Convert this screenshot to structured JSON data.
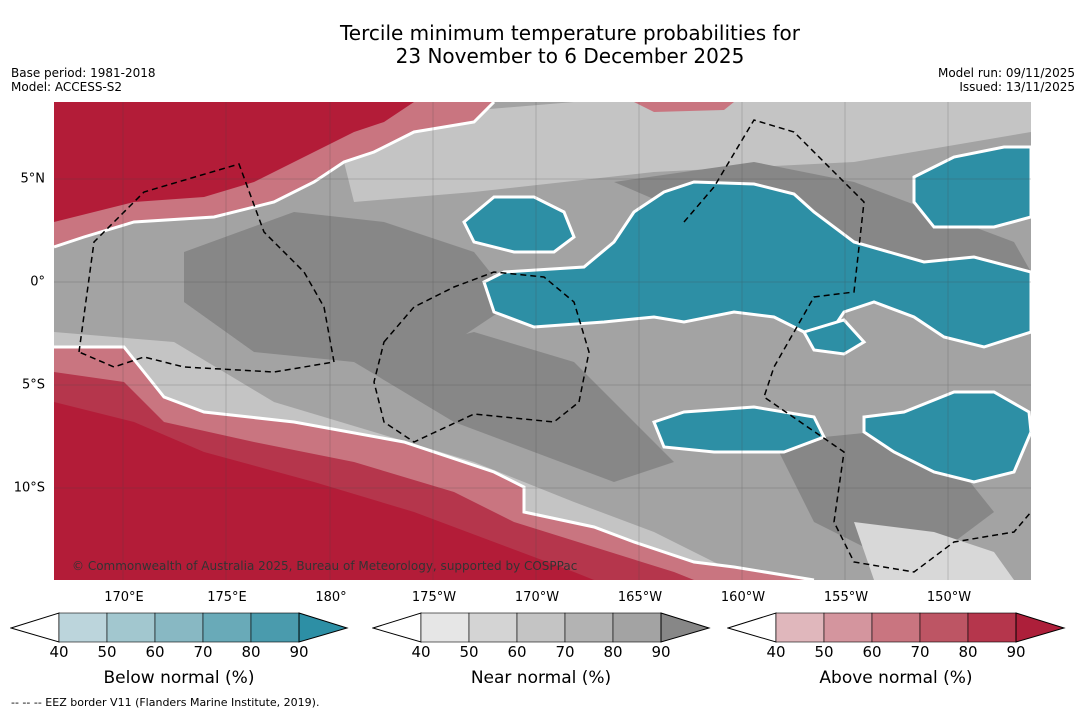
{
  "title": {
    "line1": "Tercile minimum temperature probabilities for",
    "line2": "23 November to 6 December 2025"
  },
  "meta": {
    "base_period": "Base period: 1981-2018",
    "model": "Model: ACCESS-S2",
    "model_run": "Model run: 09/11/2025",
    "issued": "Issued: 13/11/2025"
  },
  "map": {
    "copyright": "© Commonwealth of Australia 2025, Bureau of Meteorology, supported by COSPPac",
    "lon_labels": [
      "170°E",
      "175°E",
      "180°",
      "175°W",
      "170°W",
      "165°W",
      "160°W",
      "155°W",
      "150°W"
    ],
    "lat_labels": [
      "5°N",
      "0°",
      "5°S",
      "10°S"
    ],
    "colors": {
      "grey_dark": "#878787",
      "grey_mid": "#a3a3a3",
      "grey_light": "#c4c4c4",
      "teal": "#2d8fa5",
      "red": "#b31c38"
    }
  },
  "colorbars": [
    {
      "name": "below",
      "title": "Below normal (%)",
      "ticks": [
        "40",
        "50",
        "60",
        "70",
        "80",
        "90"
      ],
      "colors": [
        "#bcd5dc",
        "#a2c7cf",
        "#88b8c3",
        "#69aab8",
        "#4a9bad",
        "#2d8fa5"
      ]
    },
    {
      "name": "near",
      "title": "Near normal (%)",
      "ticks": [
        "40",
        "50",
        "60",
        "70",
        "80",
        "90"
      ],
      "colors": [
        "#e6e6e6",
        "#d4d4d4",
        "#c4c4c4",
        "#b3b3b3",
        "#a3a3a3",
        "#878787"
      ]
    },
    {
      "name": "above",
      "title": "Above normal (%)",
      "ticks": [
        "40",
        "50",
        "60",
        "70",
        "80",
        "90"
      ],
      "colors": [
        "#e0b7bc",
        "#d4959e",
        "#c97580",
        "#bd5564",
        "#b5364c",
        "#ad1f3a"
      ]
    }
  ],
  "footnote": "--  --  -- EEZ border V11 (Flanders Marine Institute, 2019)."
}
